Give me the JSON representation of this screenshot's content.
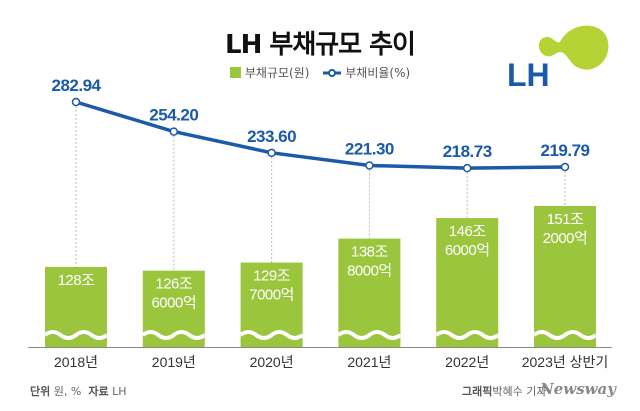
{
  "title": "LH 부채규모 추이",
  "legend": {
    "bar": "부채규모(원)",
    "line": "부채비율(%)"
  },
  "logo_text": "LH",
  "footer": {
    "unit_label": "단위",
    "unit": "원, %",
    "source_label": "자료",
    "source": "LH",
    "graphic_label": "그래픽",
    "author": "박혜수 기자",
    "brand": "Newsway"
  },
  "colors": {
    "bar": "#9bc53d",
    "line": "#1a5aa8",
    "logo_blue": "#1a5aa8",
    "logo_green": "#b5d334"
  },
  "chart_data": {
    "type": "bar+line",
    "categories": [
      "2018년",
      "2019년",
      "2020년",
      "2021년",
      "2022년",
      "2023년 상반기"
    ],
    "series": [
      {
        "name": "부채규모(원)",
        "type": "bar",
        "unit": "조원",
        "values": [
          128,
          126.6,
          129.7,
          138.8,
          146.6,
          151.2
        ],
        "labels": [
          [
            "128조"
          ],
          [
            "126조",
            "6000억"
          ],
          [
            "129조",
            "7000억"
          ],
          [
            "138조",
            "8000억"
          ],
          [
            "146조",
            "6000억"
          ],
          [
            "151조",
            "2000억"
          ]
        ]
      },
      {
        "name": "부채비율(%)",
        "type": "line",
        "values": [
          282.94,
          254.2,
          233.6,
          221.3,
          218.73,
          219.79
        ],
        "labels": [
          "282.94",
          "254.20",
          "233.60",
          "221.30",
          "218.73",
          "219.79"
        ]
      }
    ],
    "axis_break": true,
    "grid": false,
    "legend_position": "top"
  }
}
